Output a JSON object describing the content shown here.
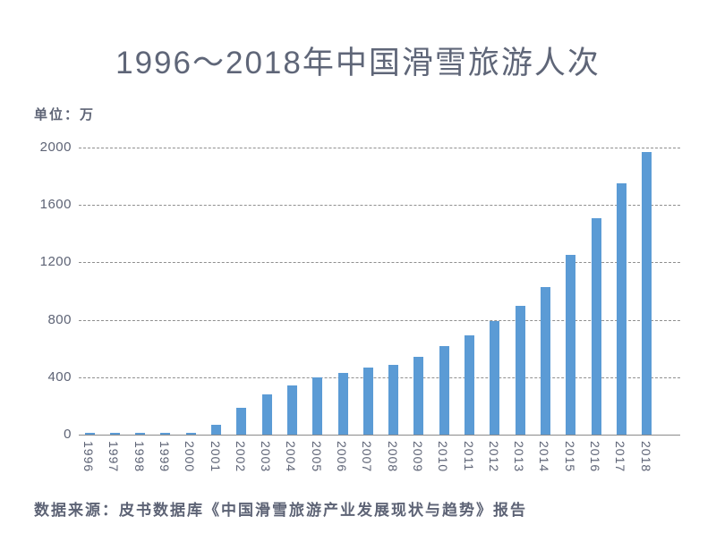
{
  "header": {
    "title": "1996～2018年中国滑雪旅游人次"
  },
  "unit_label": "单位：万",
  "footer": {
    "source": "数据来源：皮书数据库《中国滑雪旅游产业发展现状与趋势》报告"
  },
  "colors": {
    "bar": "#5b9bd5",
    "text": "#5d6375",
    "gridline": "#8f8f8f",
    "axis": "#8a8a8a",
    "background": "#ffffff"
  },
  "chart_data": {
    "type": "bar",
    "title": "1996～2018年中国滑雪旅游人次",
    "unit": "万",
    "categories": [
      "1996",
      "1997",
      "1998",
      "1999",
      "2000",
      "2001",
      "2002",
      "2003",
      "2004",
      "2005",
      "2006",
      "2007",
      "2008",
      "2009",
      "2010",
      "2011",
      "2012",
      "2013",
      "2014",
      "2015",
      "2016",
      "2017",
      "2018"
    ],
    "values": [
      10,
      10,
      10,
      10,
      10,
      70,
      185,
      280,
      340,
      400,
      430,
      465,
      485,
      540,
      620,
      690,
      790,
      900,
      1030,
      1250,
      1510,
      1750,
      1970
    ],
    "xlabel": "",
    "ylabel": "单位：万",
    "ylim": [
      0,
      2000
    ],
    "yticks": [
      0,
      400,
      800,
      1200,
      1600,
      2000
    ],
    "grid": "horizontal-dashed",
    "legend": "none",
    "source": "数据来源：皮书数据库《中国滑雪旅游产业发展现状与趋势》报告"
  }
}
